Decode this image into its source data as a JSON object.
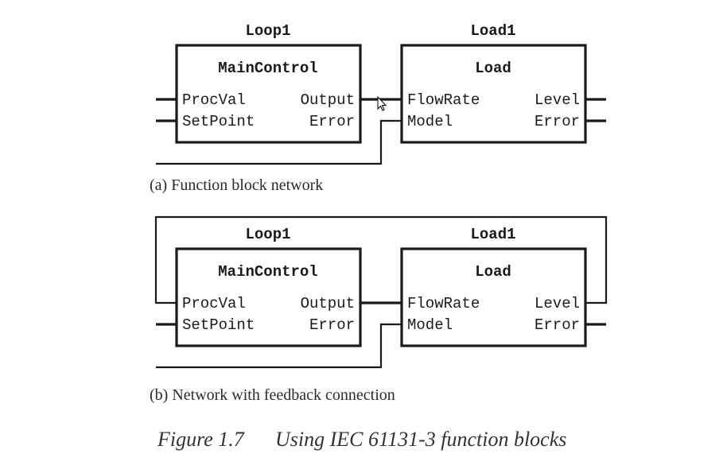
{
  "diagram_a": {
    "left_block": {
      "instance_name": "Loop1",
      "type_name": "MainControl",
      "inputs": [
        "ProcVal",
        "SetPoint"
      ],
      "outputs": [
        "Output",
        "Error"
      ]
    },
    "right_block": {
      "instance_name": "Load1",
      "type_name": "Load",
      "inputs": [
        "FlowRate",
        "Model"
      ],
      "outputs": [
        "Level",
        "Error"
      ]
    },
    "caption": "(a) Function block network"
  },
  "diagram_b": {
    "left_block": {
      "instance_name": "Loop1",
      "type_name": "MainControl",
      "inputs": [
        "ProcVal",
        "SetPoint"
      ],
      "outputs": [
        "Output",
        "Error"
      ]
    },
    "right_block": {
      "instance_name": "Load1",
      "type_name": "Load",
      "inputs": [
        "FlowRate",
        "Model"
      ],
      "outputs": [
        "Level",
        "Error"
      ]
    },
    "caption": "(b) Network with feedback connection"
  },
  "figure_caption": {
    "number": "Figure 1.7",
    "title": "Using IEC 61131-3 function blocks"
  }
}
